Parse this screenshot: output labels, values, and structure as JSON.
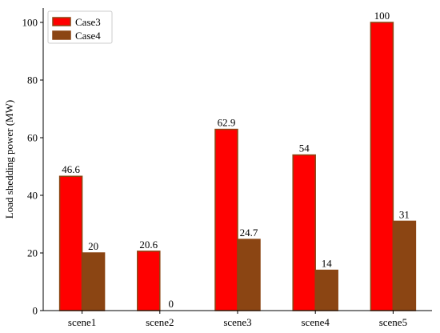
{
  "chart_data": {
    "type": "bar",
    "categories": [
      "scene1",
      "scene2",
      "scene3",
      "scene4",
      "scene5"
    ],
    "series": [
      {
        "name": "Case3",
        "values": [
          46.6,
          20.6,
          62.9,
          54,
          100
        ],
        "color": "#ff0000",
        "edge_color": "#8b4513",
        "labels": [
          "46.6",
          "20.6",
          "62.9",
          "54",
          "100"
        ]
      },
      {
        "name": "Case4",
        "values": [
          20,
          0,
          24.7,
          14,
          31
        ],
        "color": "#8b4513",
        "edge_color": "#8b4513",
        "labels": [
          "20",
          "0",
          "24.7",
          "14",
          "31"
        ]
      }
    ],
    "ylabel": "Load shedding power (MW)",
    "ylim": [
      0,
      105
    ],
    "yticks": [
      0,
      20,
      40,
      60,
      80,
      100
    ],
    "grid": false,
    "legend": "top-left"
  }
}
